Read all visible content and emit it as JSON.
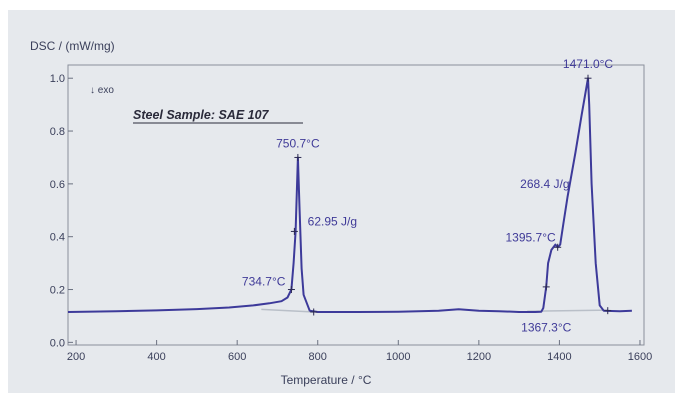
{
  "chart_data": {
    "type": "line",
    "title": "",
    "sample_label": "Steel Sample: SAE 107",
    "exo_marker": "↓ exo",
    "xlabel": "Temperature / °C",
    "ylabel": "DSC / (mW/mg)",
    "xlim": [
      180,
      1610
    ],
    "ylim": [
      -0.01,
      1.05
    ],
    "x_ticks": [
      200,
      400,
      600,
      800,
      1000,
      1200,
      1400,
      1600
    ],
    "x_tick_labels": [
      "200",
      "400",
      "600",
      "800",
      "1000",
      "1200",
      "1400",
      "1600"
    ],
    "y_ticks": [
      0.0,
      0.2,
      0.4,
      0.6,
      0.8,
      1.0
    ],
    "y_tick_labels": [
      "0.0",
      "0.2",
      "0.4",
      "0.6",
      "0.8",
      "1.0"
    ],
    "grid": false,
    "line_color": "#3d3a9a",
    "baseline_color": "#b9bfc8",
    "series": [
      {
        "x": [
          180,
          300,
          400,
          500,
          580,
          640,
          680,
          710,
          725,
          734.7,
          740,
          745,
          750.7,
          755,
          760,
          765,
          780,
          800,
          900,
          1000,
          1100,
          1150,
          1200,
          1250,
          1300,
          1340,
          1355,
          1360,
          1367.3,
          1372,
          1380,
          1390,
          1395.7,
          1402,
          1410,
          1420,
          1440,
          1455,
          1471.0,
          1474,
          1480,
          1490,
          1500,
          1510,
          1550,
          1580
        ],
        "y": [
          0.115,
          0.118,
          0.121,
          0.126,
          0.132,
          0.14,
          0.148,
          0.156,
          0.17,
          0.2,
          0.3,
          0.42,
          0.7,
          0.5,
          0.28,
          0.18,
          0.12,
          0.115,
          0.115,
          0.116,
          0.12,
          0.125,
          0.12,
          0.118,
          0.115,
          0.115,
          0.116,
          0.13,
          0.21,
          0.3,
          0.35,
          0.37,
          0.36,
          0.37,
          0.45,
          0.55,
          0.72,
          0.86,
          1.0,
          0.9,
          0.6,
          0.3,
          0.14,
          0.12,
          0.118,
          0.12
        ]
      }
    ],
    "baseline": [
      {
        "x": [
          660,
          790
        ],
        "y": [
          0.125,
          0.115
        ]
      },
      {
        "x": [
          1320,
          1520
        ],
        "y": [
          0.118,
          0.122
        ]
      }
    ],
    "markers": [
      {
        "x": 734.7,
        "y": 0.2
      },
      {
        "x": 742,
        "y": 0.42
      },
      {
        "x": 750.7,
        "y": 0.7
      },
      {
        "x": 790,
        "y": 0.115
      },
      {
        "x": 1367.3,
        "y": 0.21
      },
      {
        "x": 1395.7,
        "y": 0.36
      },
      {
        "x": 1471.0,
        "y": 1.0
      },
      {
        "x": 1520,
        "y": 0.12
      }
    ],
    "annotations": [
      {
        "text": "750.7°C",
        "x": 750.7,
        "y": 0.7,
        "anchor": "middle",
        "pos": "above"
      },
      {
        "text": "62.95 J/g",
        "x": 770,
        "y": 0.42,
        "anchor": "start",
        "pos": "above-right"
      },
      {
        "text": "734.7°C",
        "x": 734.7,
        "y": 0.2,
        "anchor": "end",
        "pos": "left"
      },
      {
        "text": "1471.0°C",
        "x": 1471.0,
        "y": 1.0,
        "anchor": "middle",
        "pos": "above"
      },
      {
        "text": "268.4 J/g",
        "x": 1440,
        "y": 0.57,
        "anchor": "end",
        "pos": "left"
      },
      {
        "text": "1395.7°C",
        "x": 1395.7,
        "y": 0.36,
        "anchor": "end",
        "pos": "above-left"
      },
      {
        "text": "1367.3°C",
        "x": 1367.3,
        "y": 0.11,
        "anchor": "middle",
        "pos": "below"
      }
    ]
  }
}
